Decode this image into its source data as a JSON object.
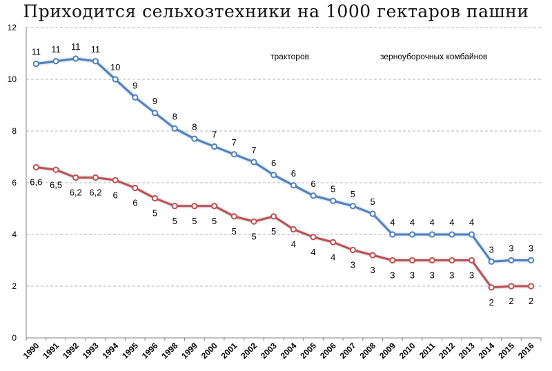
{
  "chart_data": {
    "type": "line",
    "title": "Приходится сельхозтехники на 1000 гектаров пашни",
    "xlabel": "",
    "ylabel": "",
    "ylim": [
      0,
      12
    ],
    "yticks": [
      0,
      2,
      4,
      6,
      8,
      10,
      12
    ],
    "grid": "horizontal dashed",
    "legend_position": "top-right",
    "categories": [
      "1990",
      "1991",
      "1992",
      "1993",
      "1994",
      "1995",
      "1996",
      "1998",
      "1999",
      "2000",
      "2001",
      "2002",
      "2003",
      "2004",
      "2005",
      "2006",
      "2007",
      "2008",
      "2009",
      "2010",
      "2011",
      "2012",
      "2013",
      "2014",
      "2015",
      "2016"
    ],
    "series": [
      {
        "name": "тракторов",
        "color": "#4f81bd",
        "values": [
          10.6,
          10.7,
          10.8,
          10.7,
          10.0,
          9.3,
          8.7,
          8.1,
          7.7,
          7.4,
          7.1,
          6.8,
          6.3,
          5.9,
          5.5,
          5.3,
          5.1,
          4.8,
          4.0,
          4.0,
          4.0,
          4.0,
          4.0,
          2.95,
          3.0,
          3.0
        ],
        "labels": [
          "11",
          "11",
          "11",
          "11",
          "10",
          "9",
          "9",
          "8",
          "8",
          "7",
          "7",
          "7",
          "6",
          "6",
          "6",
          "5",
          "5",
          "5",
          "4",
          "4",
          "4",
          "4",
          "4",
          "3",
          "3",
          "3"
        ]
      },
      {
        "name": "зерноуборочных комбайнов",
        "color": "#c0504d",
        "values": [
          6.6,
          6.5,
          6.2,
          6.2,
          6.1,
          5.8,
          5.4,
          5.1,
          5.1,
          5.1,
          4.7,
          4.5,
          4.7,
          4.2,
          3.9,
          3.7,
          3.4,
          3.2,
          3.0,
          3.0,
          3.0,
          3.0,
          3.0,
          1.95,
          2.0,
          2.0
        ],
        "labels": [
          "6,6",
          "6,5",
          "6,2",
          "6,2",
          "6",
          "6",
          "5",
          "5",
          "5",
          "5",
          "5",
          "5",
          "5",
          "4",
          "4",
          "4",
          "3",
          "3",
          "3",
          "3",
          "3",
          "3",
          "3",
          "2",
          "2",
          "2"
        ]
      }
    ]
  }
}
